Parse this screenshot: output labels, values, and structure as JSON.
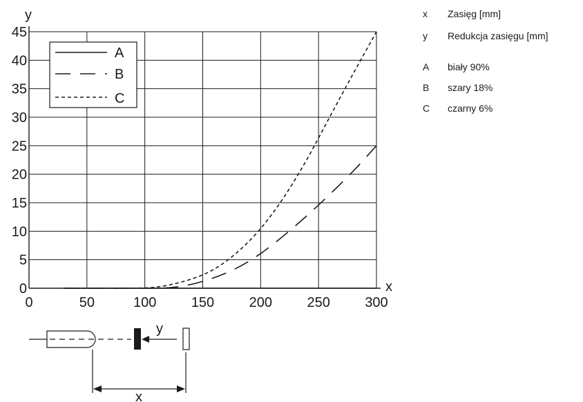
{
  "chart_data": {
    "type": "line",
    "xlabel": "x",
    "ylabel": "y",
    "xlim": [
      0,
      300
    ],
    "ylim": [
      0,
      45
    ],
    "x_ticks": [
      0,
      50,
      100,
      150,
      200,
      250,
      300
    ],
    "y_ticks": [
      0,
      5,
      10,
      15,
      20,
      25,
      30,
      35,
      40,
      45
    ],
    "grid": true,
    "legend_position": "top-left",
    "series": [
      {
        "name": "A",
        "line_style": "solid",
        "x": [
          30,
          300
        ],
        "y": [
          0,
          0
        ]
      },
      {
        "name": "B",
        "line_style": "long-dash",
        "x": [
          30,
          100,
          120,
          140,
          160,
          180,
          200,
          220,
          240,
          260,
          280,
          300
        ],
        "y": [
          0,
          0,
          0,
          0.6,
          1.8,
          3.5,
          6,
          9.2,
          12.7,
          16.5,
          20.5,
          25
        ]
      },
      {
        "name": "C",
        "line_style": "short-dash",
        "x": [
          30,
          100,
          110,
          120,
          140,
          160,
          180,
          200,
          220,
          240,
          260,
          280,
          300
        ],
        "y": [
          0,
          0,
          0.2,
          0.5,
          1.5,
          3.2,
          6.2,
          10.3,
          15.8,
          22.5,
          30.2,
          37.7,
          45
        ]
      }
    ]
  },
  "key_items": [
    {
      "symbol": "x",
      "text": "Zasięg [mm]"
    },
    {
      "symbol": "y",
      "text": "Redukcja zasięgu [mm]"
    },
    {
      "symbol": "A",
      "text": "biały 90%"
    },
    {
      "symbol": "B",
      "text": "szary 18%"
    },
    {
      "symbol": "C",
      "text": "czarny 6%"
    }
  ],
  "diagram": {
    "x_label": "x",
    "y_label": "y"
  }
}
